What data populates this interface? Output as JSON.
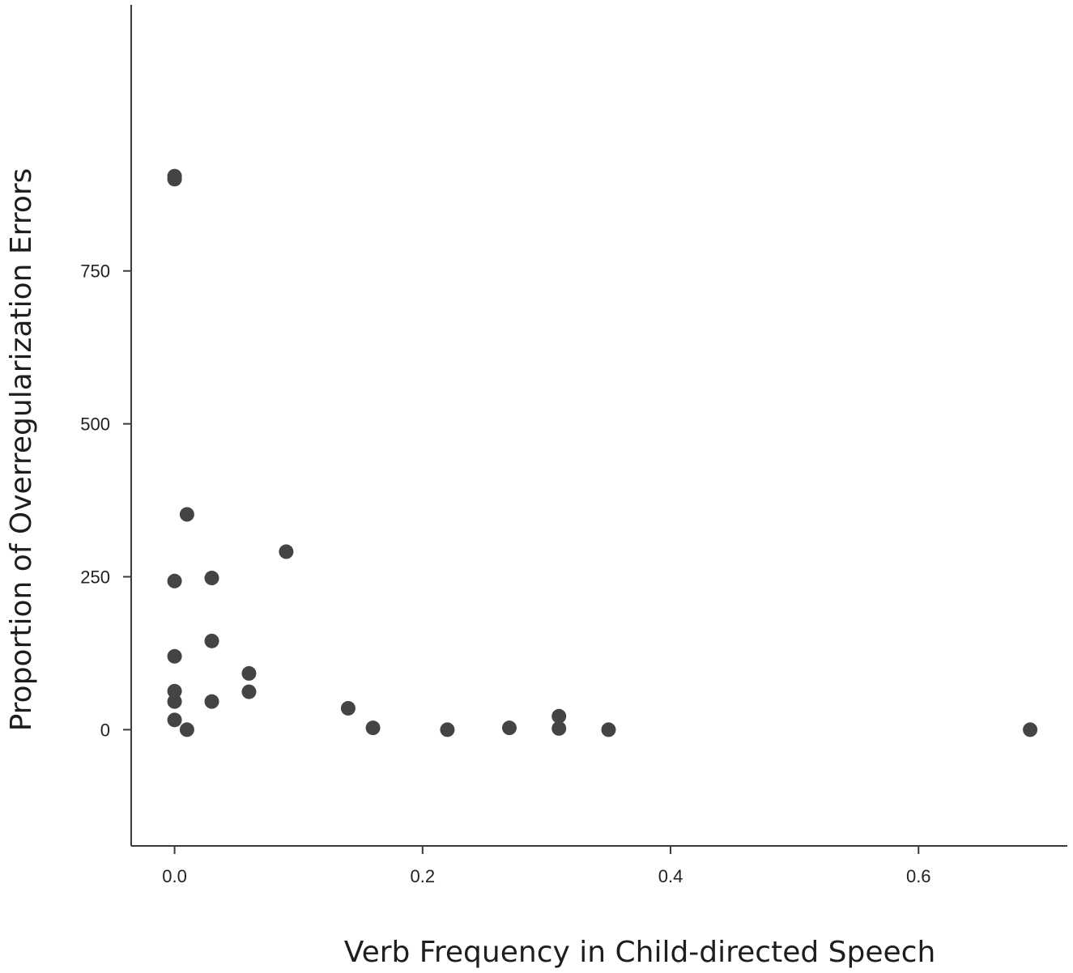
{
  "chart_data": {
    "type": "scatter",
    "title": "",
    "xlabel": "Verb Frequency in Child-directed Speech",
    "ylabel": "Proportion of Overregularization Errors",
    "xlim": [
      -0.035,
      0.72
    ],
    "ylim": [
      -190,
      1185
    ],
    "x_ticks": [
      0.0,
      0.2,
      0.4,
      0.6
    ],
    "x_tick_labels": [
      "0.0",
      "0.2",
      "0.4",
      "0.6"
    ],
    "y_ticks": [
      0,
      250,
      500,
      750
    ],
    "y_tick_labels": [
      "0",
      "250",
      "500",
      "750"
    ],
    "grid": false,
    "legend": "none",
    "point_color": "#444444",
    "points": [
      {
        "x": 0.0,
        "y": 900
      },
      {
        "x": 0.0,
        "y": 905
      },
      {
        "x": 0.01,
        "y": 352
      },
      {
        "x": 0.09,
        "y": 291
      },
      {
        "x": 0.0,
        "y": 243
      },
      {
        "x": 0.03,
        "y": 248
      },
      {
        "x": 0.03,
        "y": 145
      },
      {
        "x": 0.0,
        "y": 120
      },
      {
        "x": 0.06,
        "y": 92
      },
      {
        "x": 0.0,
        "y": 63
      },
      {
        "x": 0.06,
        "y": 62
      },
      {
        "x": 0.0,
        "y": 46
      },
      {
        "x": 0.03,
        "y": 46
      },
      {
        "x": 0.14,
        "y": 35
      },
      {
        "x": 0.0,
        "y": 16
      },
      {
        "x": 0.31,
        "y": 22
      },
      {
        "x": 0.01,
        "y": 0
      },
      {
        "x": 0.16,
        "y": 3
      },
      {
        "x": 0.22,
        "y": 0
      },
      {
        "x": 0.27,
        "y": 3
      },
      {
        "x": 0.31,
        "y": 2
      },
      {
        "x": 0.35,
        "y": 0
      },
      {
        "x": 0.69,
        "y": 0
      }
    ]
  }
}
